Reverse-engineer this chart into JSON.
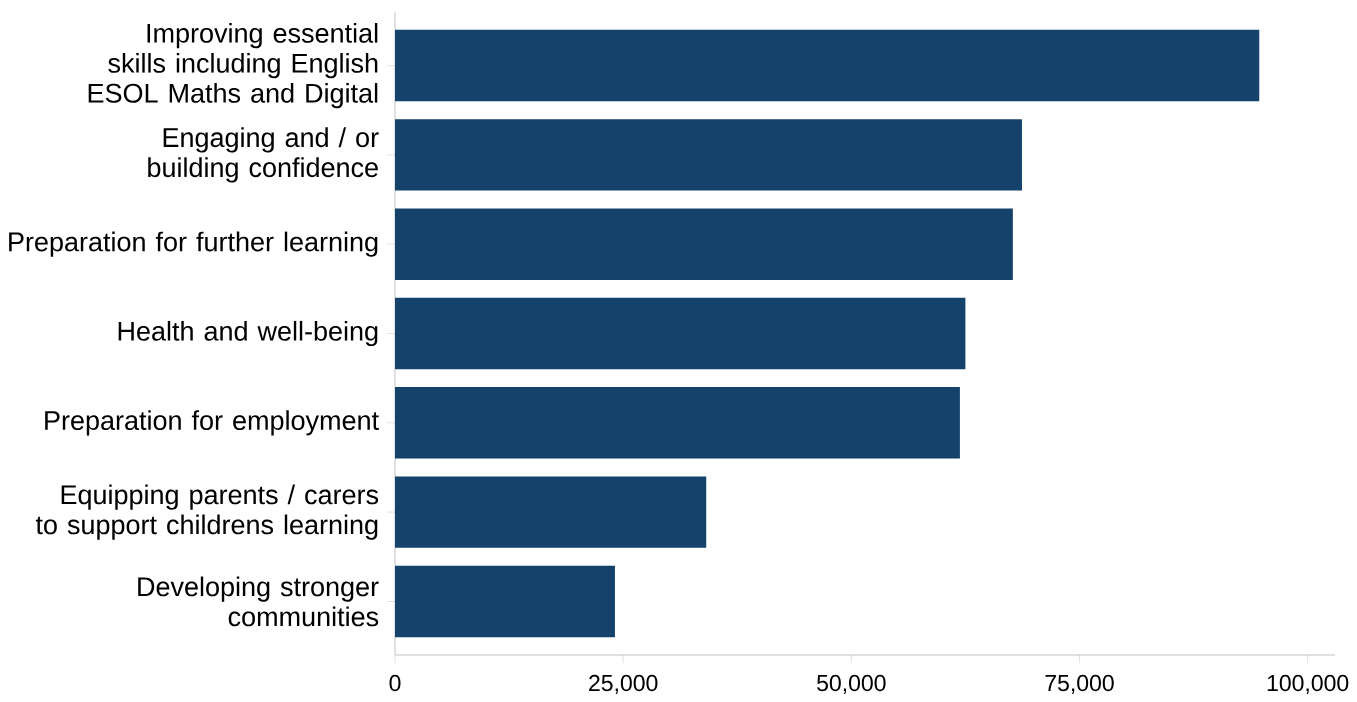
{
  "chart_data": {
    "type": "bar",
    "orientation": "horizontal",
    "categories": [
      "Improving essential skills including English ESOL Maths and Digital",
      "Engaging and / or building confidence",
      "Preparation for further learning",
      "Health and well-being",
      "Preparation for employment",
      "Equipping parents / carers to support childrens learning",
      "Developing stronger communities"
    ],
    "values": [
      94700,
      68700,
      67700,
      62500,
      61900,
      34100,
      24100
    ],
    "color": "#14426b",
    "xlim": [
      0,
      103000
    ],
    "xticks": [
      0,
      {
        "value": 25000,
        "label": "25,000"
      },
      {
        "value": 50000,
        "label": "50,000"
      },
      {
        "value": 75000,
        "label": "75,000"
      },
      {
        "value": 100000,
        "label": "100,000"
      }
    ]
  }
}
